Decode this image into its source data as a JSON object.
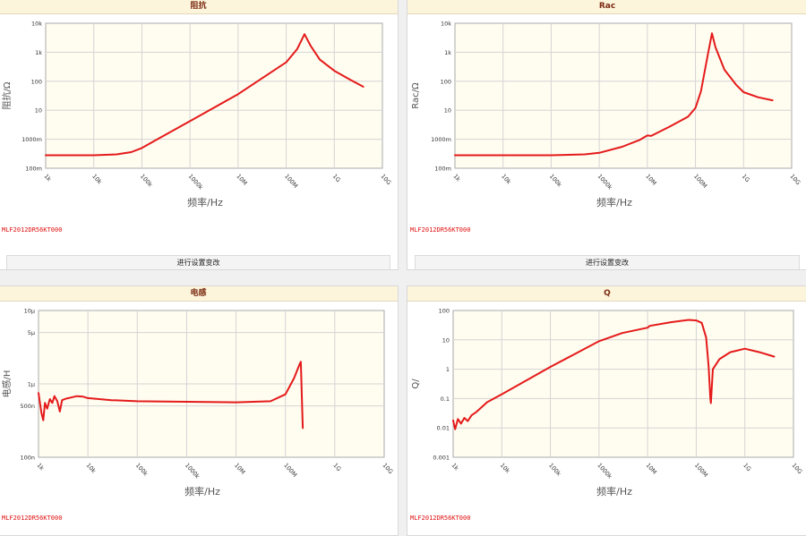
{
  "colors": {
    "curve": "#e41a1a",
    "plot_background": "#fffcf0",
    "header_background": "#fdf4dc",
    "header_text": "#7a2a10",
    "part_text": "#e01010"
  },
  "charts": [
    {
      "id": "impedance",
      "header": "阻抗",
      "part_no": "MLF2012DR56KT000",
      "settings_label": "进行设置变改",
      "chart_data": {
        "type": "line",
        "title": "阻抗",
        "xlabel": "频率/Hz",
        "ylabel": "阻抗/Ω",
        "x_scale": "log",
        "y_scale": "log",
        "xlim": [
          1000,
          10000000000
        ],
        "ylim": [
          0.1,
          10000
        ],
        "grid": true,
        "x_ticks": [
          {
            "v": 1000,
            "label": "1k"
          },
          {
            "v": 10000,
            "label": "10k"
          },
          {
            "v": 100000,
            "label": "100k"
          },
          {
            "v": 1000000,
            "label": "1000k"
          },
          {
            "v": 10000000,
            "label": "10M"
          },
          {
            "v": 100000000,
            "label": "100M"
          },
          {
            "v": 1000000000,
            "label": "1G"
          },
          {
            "v": 10000000000,
            "label": "10G"
          }
        ],
        "y_ticks": [
          {
            "v": 0.1,
            "label": "100m"
          },
          {
            "v": 1,
            "label": "1000m"
          },
          {
            "v": 10,
            "label": "10"
          },
          {
            "v": 100,
            "label": "100"
          },
          {
            "v": 1000,
            "label": "1k"
          },
          {
            "v": 10000,
            "label": "10k"
          }
        ],
        "series": [
          {
            "values": [
              [
                1000,
                0.28
              ],
              [
                10000,
                0.28
              ],
              [
                30000,
                0.3
              ],
              [
                60000,
                0.36
              ],
              [
                100000,
                0.5
              ],
              [
                200000,
                0.95
              ],
              [
                1000000,
                4.2
              ],
              [
                10000000,
                36
              ],
              [
                100000000,
                450
              ],
              [
                170000000,
                1300
              ],
              [
                240000000,
                4200
              ],
              [
                320000000,
                1700
              ],
              [
                500000000,
                560
              ],
              [
                1000000000,
                230
              ],
              [
                2000000000,
                120
              ],
              [
                4000000000,
                65
              ]
            ]
          }
        ]
      }
    },
    {
      "id": "rac",
      "header": "Rac",
      "part_no": "MLF2012DR56KT000",
      "settings_label": "进行设置变改",
      "chart_data": {
        "type": "line",
        "title": "Rac",
        "xlabel": "频率/Hz",
        "ylabel": "Rac/Ω",
        "x_scale": "log",
        "y_scale": "log",
        "xlim": [
          1000,
          10000000000
        ],
        "ylim": [
          0.1,
          10000
        ],
        "grid": true,
        "x_ticks": [
          {
            "v": 1000,
            "label": "1k"
          },
          {
            "v": 10000,
            "label": "10k"
          },
          {
            "v": 100000,
            "label": "100k"
          },
          {
            "v": 1000000,
            "label": "1000k"
          },
          {
            "v": 10000000,
            "label": "10M"
          },
          {
            "v": 100000000,
            "label": "100M"
          },
          {
            "v": 1000000000,
            "label": "1G"
          },
          {
            "v": 10000000000,
            "label": "10G"
          }
        ],
        "y_ticks": [
          {
            "v": 0.1,
            "label": "100m"
          },
          {
            "v": 1,
            "label": "1000m"
          },
          {
            "v": 10,
            "label": "10"
          },
          {
            "v": 100,
            "label": "100"
          },
          {
            "v": 1000,
            "label": "1k"
          },
          {
            "v": 10000,
            "label": "10k"
          }
        ],
        "series": [
          {
            "values": [
              [
                1000,
                0.28
              ],
              [
                100000,
                0.28
              ],
              [
                500000,
                0.3
              ],
              [
                1000000,
                0.34
              ],
              [
                3000000,
                0.55
              ],
              [
                7000000,
                0.95
              ],
              [
                10000000,
                1.35
              ],
              [
                12000000,
                1.3
              ],
              [
                30000000,
                2.8
              ],
              [
                70000000,
                6
              ],
              [
                100000000,
                12
              ],
              [
                130000000,
                45
              ],
              [
                180000000,
                800
              ],
              [
                220000000,
                4500
              ],
              [
                260000000,
                1500
              ],
              [
                400000000,
                250
              ],
              [
                700000000,
                75
              ],
              [
                1000000000,
                42
              ],
              [
                2000000000,
                28
              ],
              [
                4000000000,
                22
              ]
            ]
          }
        ]
      }
    },
    {
      "id": "inductance",
      "header": "电感",
      "part_no": "MLF2012DR56KT000",
      "chart_data": {
        "type": "line",
        "title": "电感",
        "xlabel": "频率/Hz",
        "ylabel": "电感/H",
        "x_scale": "log",
        "y_scale": "log",
        "xlim": [
          1000,
          10000000000
        ],
        "ylim": [
          1e-07,
          1e-05
        ],
        "grid": true,
        "x_ticks": [
          {
            "v": 1000,
            "label": "1k"
          },
          {
            "v": 10000,
            "label": "10k"
          },
          {
            "v": 100000,
            "label": "100k"
          },
          {
            "v": 1000000,
            "label": "1000k"
          },
          {
            "v": 10000000,
            "label": "10M"
          },
          {
            "v": 100000000,
            "label": "100M"
          },
          {
            "v": 1000000000,
            "label": "1G"
          },
          {
            "v": 10000000000,
            "label": "10G"
          }
        ],
        "y_ticks": [
          {
            "v": 1e-07,
            "label": "100n"
          },
          {
            "v": 5e-07,
            "label": "500n"
          },
          {
            "v": 1e-06,
            "label": "1μ"
          },
          {
            "v": 5e-06,
            "label": "5μ"
          },
          {
            "v": 1e-05,
            "label": "10μ"
          }
        ],
        "series": [
          {
            "values": [
              [
                1000,
                7.5e-07
              ],
              [
                1150,
                4e-07
              ],
              [
                1250,
                3.2e-07
              ],
              [
                1350,
                5.5e-07
              ],
              [
                1500,
                4.6e-07
              ],
              [
                1700,
                6.2e-07
              ],
              [
                1900,
                5.5e-07
              ],
              [
                2100,
                6.8e-07
              ],
              [
                2400,
                5.8e-07
              ],
              [
                2700,
                4.2e-07
              ],
              [
                3000,
                6e-07
              ],
              [
                3600,
                6.3e-07
              ],
              [
                4500,
                6.5e-07
              ],
              [
                6000,
                6.8e-07
              ],
              [
                8000,
                6.7e-07
              ],
              [
                10000,
                6.4e-07
              ],
              [
                30000,
                6e-07
              ],
              [
                100000,
                5.8e-07
              ],
              [
                1000000,
                5.7e-07
              ],
              [
                10000000,
                5.6e-07
              ],
              [
                50000000,
                5.8e-07
              ],
              [
                100000000,
                7.2e-07
              ],
              [
                150000000,
                1.2e-06
              ],
              [
                190000000,
                1.8e-06
              ],
              [
                205000000,
                2e-06
              ],
              [
                215000000,
                7e-07
              ],
              [
                225000000,
                2.5e-07
              ]
            ]
          }
        ]
      }
    },
    {
      "id": "q",
      "header": "Q",
      "part_no": "MLF2012DR56KT000",
      "chart_data": {
        "type": "line",
        "title": "Q",
        "xlabel": "频率/Hz",
        "ylabel": "Q/",
        "x_scale": "log",
        "y_scale": "log",
        "xlim": [
          1000,
          10000000000
        ],
        "ylim": [
          0.001,
          100
        ],
        "grid": true,
        "x_ticks": [
          {
            "v": 1000,
            "label": "1k"
          },
          {
            "v": 10000,
            "label": "10k"
          },
          {
            "v": 100000,
            "label": "100k"
          },
          {
            "v": 1000000,
            "label": "1000k"
          },
          {
            "v": 10000000,
            "label": "10M"
          },
          {
            "v": 100000000,
            "label": "100M"
          },
          {
            "v": 1000000000,
            "label": "1G"
          },
          {
            "v": 10000000000,
            "label": "10G"
          }
        ],
        "y_ticks": [
          {
            "v": 0.001,
            "label": "0.001"
          },
          {
            "v": 0.01,
            "label": "0.01"
          },
          {
            "v": 0.1,
            "label": "0.1"
          },
          {
            "v": 1,
            "label": "1"
          },
          {
            "v": 10,
            "label": "10"
          },
          {
            "v": 100,
            "label": "100"
          }
        ],
        "series": [
          {
            "values": [
              [
                1000,
                0.018
              ],
              [
                1100,
                0.009
              ],
              [
                1250,
                0.02
              ],
              [
                1450,
                0.014
              ],
              [
                1700,
                0.022
              ],
              [
                2000,
                0.017
              ],
              [
                2400,
                0.027
              ],
              [
                3000,
                0.035
              ],
              [
                5000,
                0.075
              ],
              [
                10000,
                0.14
              ],
              [
                100000,
                1.2
              ],
              [
                1000000,
                9
              ],
              [
                3000000,
                17
              ],
              [
                10000000,
                26
              ],
              [
                11000000,
                30
              ],
              [
                30000000,
                40
              ],
              [
                70000000,
                48
              ],
              [
                100000000,
                46
              ],
              [
                130000000,
                38
              ],
              [
                160000000,
                12
              ],
              [
                180000000,
                1.2
              ],
              [
                195000000,
                0.1
              ],
              [
                200000000,
                0.07
              ],
              [
                220000000,
                1
              ],
              [
                300000000,
                2.2
              ],
              [
                500000000,
                3.8
              ],
              [
                1000000000,
                5
              ],
              [
                2000000000,
                3.8
              ],
              [
                4000000000,
                2.7
              ]
            ]
          }
        ]
      }
    }
  ]
}
